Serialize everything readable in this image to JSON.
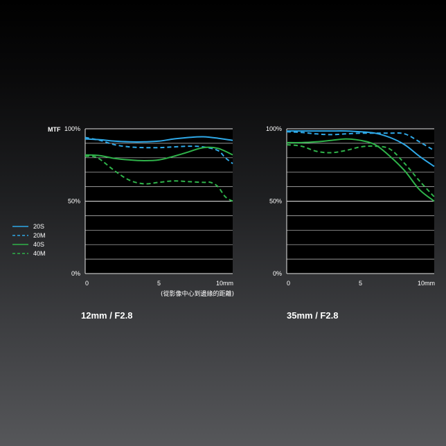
{
  "colors": {
    "sagittal_20": "#2fa9e8",
    "meridional_20": "#2fa9e8",
    "sagittal_40": "#2fb34a",
    "meridional_40": "#2fb34a",
    "grid": "#c8c8c8",
    "background_top": "#000000",
    "background_bottom": "#56575a"
  },
  "y_axis_title": "MTF",
  "x_axis_note": "(從影像中心到邊緣的距離)",
  "legend": [
    {
      "label": "20S",
      "color": "#2fa9e8",
      "dash": "solid"
    },
    {
      "label": "20M",
      "color": "#2fa9e8",
      "dash": "dashed"
    },
    {
      "label": "40S",
      "color": "#2fb34a",
      "dash": "solid"
    },
    {
      "label": "40M",
      "color": "#2fb34a",
      "dash": "dashed"
    }
  ],
  "chart_data": [
    {
      "type": "line",
      "caption": "12mm / F2.8",
      "ylabel": "MTF",
      "yticks": [
        "100%",
        "50%",
        "0%"
      ],
      "xticks": [
        "0",
        "5",
        "10mm"
      ],
      "xlim": [
        0,
        10
      ],
      "ylim": [
        0,
        100
      ],
      "grid": true,
      "series": [
        {
          "name": "20S",
          "style": "solid",
          "color": "#2fa9e8",
          "x": [
            0,
            1,
            2,
            3,
            4,
            5,
            6,
            7,
            8,
            9,
            10
          ],
          "y": [
            93,
            92.5,
            91.5,
            91,
            91,
            91.5,
            93,
            94,
            94.5,
            93.5,
            92
          ]
        },
        {
          "name": "20M",
          "style": "dashed",
          "color": "#2fa9e8",
          "x": [
            0,
            1,
            2,
            3,
            4,
            5,
            6,
            7,
            8,
            9,
            9.5,
            10
          ],
          "y": [
            94,
            92,
            89,
            87.5,
            87,
            87,
            87.5,
            88,
            87.5,
            85,
            80,
            76
          ]
        },
        {
          "name": "40S",
          "style": "solid",
          "color": "#2fb34a",
          "x": [
            0,
            1,
            2,
            3,
            4,
            5,
            6,
            7,
            8,
            9,
            10
          ],
          "y": [
            82,
            81.5,
            79.5,
            78.5,
            78,
            78.5,
            81,
            84,
            87,
            86.5,
            82
          ]
        },
        {
          "name": "40M",
          "style": "dashed",
          "color": "#2fb34a",
          "x": [
            0,
            0.5,
            1,
            2,
            3,
            4,
            5,
            6,
            7,
            8,
            8.5,
            9,
            9.5,
            10
          ],
          "y": [
            81,
            81,
            79,
            71,
            64.5,
            62,
            63,
            64,
            63.5,
            63,
            63,
            60,
            53,
            50
          ]
        }
      ]
    },
    {
      "type": "line",
      "caption": "35mm / F2.8",
      "ylabel": "",
      "yticks": [
        "100%",
        "50%",
        "0%"
      ],
      "xticks": [
        "0",
        "5",
        "10mm"
      ],
      "xlim": [
        0,
        10
      ],
      "ylim": [
        0,
        100
      ],
      "grid": true,
      "series": [
        {
          "name": "20S",
          "style": "solid",
          "color": "#2fa9e8",
          "x": [
            0,
            1,
            2,
            3,
            4,
            5,
            6,
            7,
            8,
            9,
            10
          ],
          "y": [
            98.5,
            98.5,
            98.5,
            98.5,
            98.5,
            98,
            97,
            94,
            89,
            81,
            74
          ]
        },
        {
          "name": "20M",
          "style": "dashed",
          "color": "#2fa9e8",
          "x": [
            0,
            1,
            2,
            3,
            4,
            5,
            6,
            7,
            8,
            9,
            10
          ],
          "y": [
            98,
            97.5,
            96.5,
            96,
            96.5,
            97,
            97,
            97,
            96.5,
            91,
            85
          ]
        },
        {
          "name": "40S",
          "style": "solid",
          "color": "#2fb34a",
          "x": [
            0,
            1,
            2,
            3,
            4,
            5,
            6,
            7,
            8,
            9,
            10
          ],
          "y": [
            90.5,
            90.5,
            91,
            92,
            93,
            92,
            89,
            81,
            71,
            58,
            50
          ]
        },
        {
          "name": "40M",
          "style": "dashed",
          "color": "#2fb34a",
          "x": [
            0,
            1,
            2,
            3,
            4,
            5,
            6,
            7,
            8,
            9,
            10
          ],
          "y": [
            89,
            88,
            84.5,
            83.5,
            85,
            87.5,
            88,
            86,
            76,
            64,
            53
          ]
        }
      ]
    }
  ]
}
